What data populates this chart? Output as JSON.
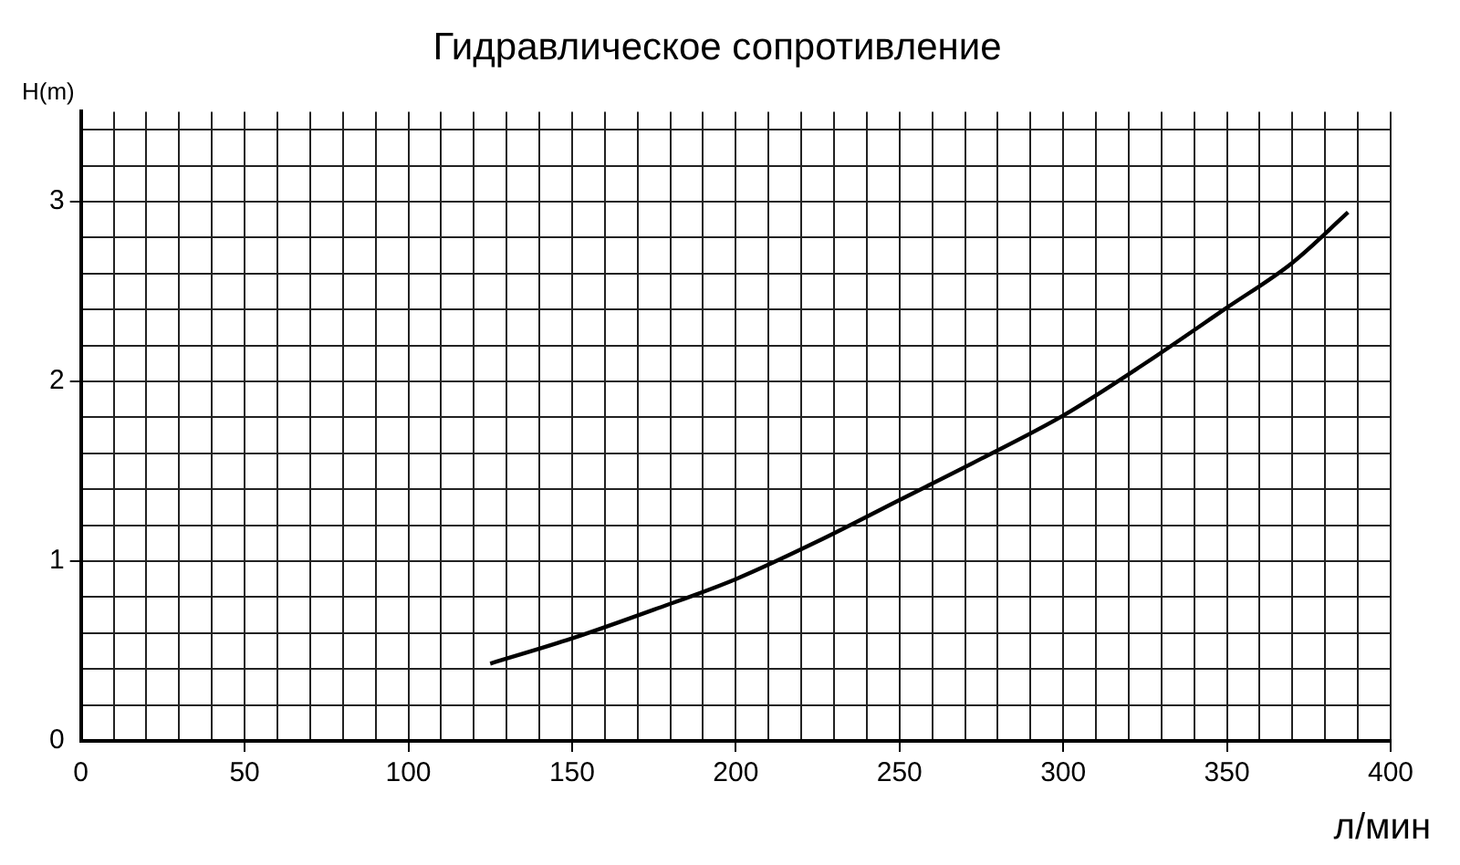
{
  "chart_data": {
    "type": "line",
    "title": "Гидравлическое сопротивление",
    "xlabel": "л/мин",
    "ylabel": "H(m)",
    "x": [
      125,
      150,
      175,
      200,
      225,
      250,
      275,
      300,
      325,
      350,
      370,
      387
    ],
    "series": [
      {
        "color": "#000000",
        "values": [
          0.43,
          0.57,
          0.73,
          0.9,
          1.11,
          1.34,
          1.57,
          1.81,
          2.1,
          2.41,
          2.66,
          2.94
        ]
      }
    ],
    "xlim": [
      0,
      400
    ],
    "xticks": [
      0,
      {
        "value": 10,
        "label": null
      },
      {
        "value": 20,
        "label": null
      },
      {
        "value": 30,
        "label": null
      },
      {
        "value": 40,
        "label": null
      },
      50,
      {
        "value": 60,
        "label": null
      },
      {
        "value": 70,
        "label": null
      },
      {
        "value": 80,
        "label": null
      },
      {
        "value": 90,
        "label": null
      },
      100,
      {
        "value": 110,
        "label": null
      },
      {
        "value": 120,
        "label": null
      },
      {
        "value": 130,
        "label": null
      },
      {
        "value": 140,
        "label": null
      },
      150,
      {
        "value": 160,
        "label": null
      },
      {
        "value": 170,
        "label": null
      },
      {
        "value": 180,
        "label": null
      },
      {
        "value": 190,
        "label": null
      },
      200,
      {
        "value": 210,
        "label": null
      },
      {
        "value": 220,
        "label": null
      },
      {
        "value": 230,
        "label": null
      },
      {
        "value": 240,
        "label": null
      },
      250,
      {
        "value": 260,
        "label": null
      },
      {
        "value": 270,
        "label": null
      },
      {
        "value": 280,
        "label": null
      },
      {
        "value": 290,
        "label": null
      },
      300,
      {
        "value": 310,
        "label": null
      },
      {
        "value": 320,
        "label": null
      },
      {
        "value": 330,
        "label": null
      },
      {
        "value": 340,
        "label": null
      },
      350,
      {
        "value": 360,
        "label": null
      },
      {
        "value": 370,
        "label": null
      },
      {
        "value": 380,
        "label": null
      },
      {
        "value": 390,
        "label": null
      },
      400
    ],
    "ylim": [
      0,
      3.5
    ],
    "yticks": [
      0,
      {
        "value": 0.2,
        "label": null
      },
      {
        "value": 0.4,
        "label": null
      },
      {
        "value": 0.6,
        "label": null
      },
      {
        "value": 0.8,
        "label": null
      },
      1,
      {
        "value": 1.2,
        "label": null
      },
      {
        "value": 1.4,
        "label": null
      },
      {
        "value": 1.6,
        "label": null
      },
      {
        "value": 1.8,
        "label": null
      },
      2,
      {
        "value": 2.2,
        "label": null
      },
      {
        "value": 2.4,
        "label": null
      },
      {
        "value": 2.6,
        "label": null
      },
      {
        "value": 2.8,
        "label": null
      },
      3,
      {
        "value": 3.2,
        "label": null
      },
      {
        "value": 3.4,
        "label": null
      }
    ],
    "grid": true,
    "legend": false,
    "marker": "none",
    "line_style": "solid"
  }
}
